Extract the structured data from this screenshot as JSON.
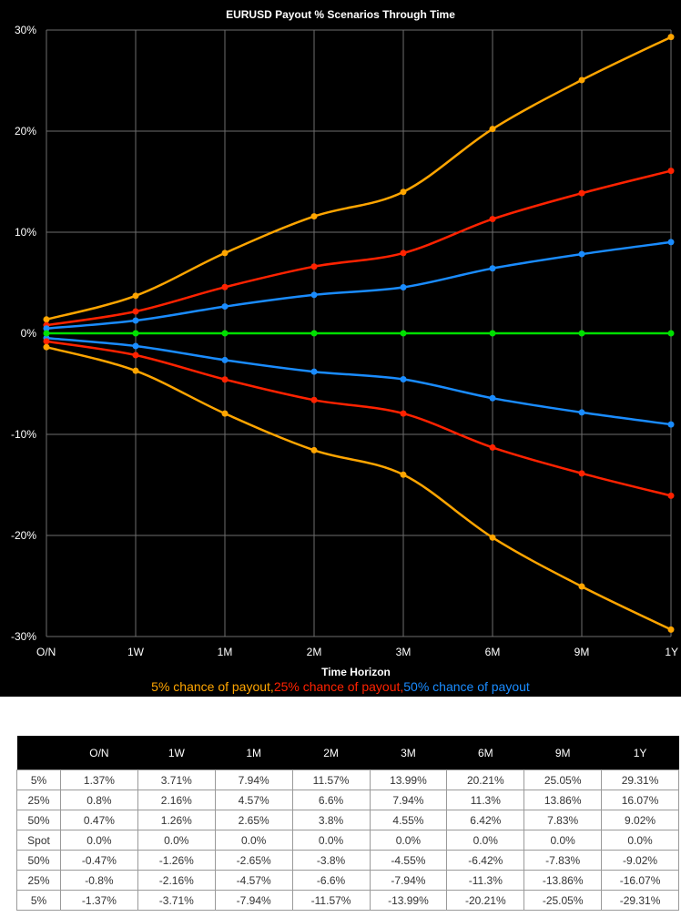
{
  "colors": {
    "background": "#000000",
    "grid": "#6e6e6e",
    "text": "#ffffff",
    "p5": "#ffa500",
    "p25": "#ff2200",
    "p50": "#1a8cff",
    "spot": "#00e000"
  },
  "legend": [
    {
      "text": "5% chance of payout,",
      "color": "#ffa500"
    },
    {
      "text": "25% chance of payout,",
      "color": "#ff2200"
    },
    {
      "text": "50% chance of payout",
      "color": "#1a8cff"
    }
  ],
  "chart_data": {
    "type": "line",
    "title": "EURUSD Payout % Scenarios Through Time",
    "xlabel": "Time Horizon",
    "ylabel": "",
    "categories": [
      "O/N",
      "1W",
      "1M",
      "2M",
      "3M",
      "6M",
      "9M",
      "1Y"
    ],
    "ylim": [
      -30,
      30
    ],
    "yticks": [
      30,
      20,
      10,
      0,
      -10,
      -20,
      -30
    ],
    "ytick_labels": [
      "30%",
      "20%",
      "10%",
      "0%",
      "-10%",
      "-20%",
      "-30%"
    ],
    "grid": true,
    "legend_position": "bottom",
    "series": [
      {
        "name": "5% chance of payout",
        "color": "#ffa500",
        "values": [
          1.37,
          3.71,
          7.94,
          11.57,
          13.99,
          20.21,
          25.05,
          29.31
        ]
      },
      {
        "name": "25% chance of payout",
        "color": "#ff2200",
        "values": [
          0.8,
          2.16,
          4.57,
          6.6,
          7.94,
          11.3,
          13.86,
          16.07
        ]
      },
      {
        "name": "50% chance of payout",
        "color": "#1a8cff",
        "values": [
          0.47,
          1.26,
          2.65,
          3.8,
          4.55,
          6.42,
          7.83,
          9.02
        ]
      },
      {
        "name": "",
        "color": "#00e000",
        "values": [
          0,
          0,
          0,
          0,
          0,
          0,
          0,
          0
        ]
      },
      {
        "name": "",
        "color": "#1a8cff",
        "values": [
          -0.47,
          -1.26,
          -2.65,
          -3.8,
          -4.55,
          -6.42,
          -7.83,
          -9.02
        ]
      },
      {
        "name": "",
        "color": "#ff2200",
        "values": [
          -0.8,
          -2.16,
          -4.57,
          -6.6,
          -7.94,
          -11.3,
          -13.86,
          -16.07
        ]
      },
      {
        "name": "",
        "color": "#ffa500",
        "values": [
          -1.37,
          -3.71,
          -7.94,
          -11.57,
          -13.99,
          -20.21,
          -25.05,
          -29.31
        ]
      }
    ]
  },
  "table": {
    "headers": [
      "",
      "O/N",
      "1W",
      "1M",
      "2M",
      "3M",
      "6M",
      "9M",
      "1Y"
    ],
    "rows": [
      [
        "5%",
        "1.37%",
        "3.71%",
        "7.94%",
        "11.57%",
        "13.99%",
        "20.21%",
        "25.05%",
        "29.31%"
      ],
      [
        "25%",
        "0.8%",
        "2.16%",
        "4.57%",
        "6.6%",
        "7.94%",
        "11.3%",
        "13.86%",
        "16.07%"
      ],
      [
        "50%",
        "0.47%",
        "1.26%",
        "2.65%",
        "3.8%",
        "4.55%",
        "6.42%",
        "7.83%",
        "9.02%"
      ],
      [
        "Spot",
        "0.0%",
        "0.0%",
        "0.0%",
        "0.0%",
        "0.0%",
        "0.0%",
        "0.0%",
        "0.0%"
      ],
      [
        "50%",
        "-0.47%",
        "-1.26%",
        "-2.65%",
        "-3.8%",
        "-4.55%",
        "-6.42%",
        "-7.83%",
        "-9.02%"
      ],
      [
        "25%",
        "-0.8%",
        "-2.16%",
        "-4.57%",
        "-6.6%",
        "-7.94%",
        "-11.3%",
        "-13.86%",
        "-16.07%"
      ],
      [
        "5%",
        "-1.37%",
        "-3.71%",
        "-7.94%",
        "-11.57%",
        "-13.99%",
        "-20.21%",
        "-25.05%",
        "-29.31%"
      ]
    ]
  }
}
